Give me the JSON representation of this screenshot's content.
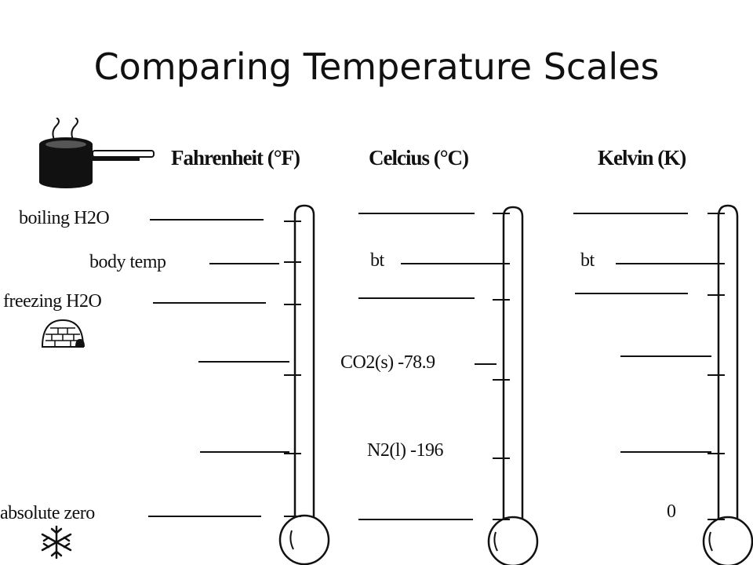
{
  "title": "Comparing Temperature Scales",
  "columns": {
    "fahrenheit": "Fahrenheit (°F)",
    "celcius": "Celcius (°C)",
    "kelvin": "Kelvin (K)"
  },
  "fahrenheit_labels": {
    "boiling": "boiling H2O",
    "body": "body temp",
    "freezing": "freezing H2O",
    "absolute_zero": "absolute zero"
  },
  "celcius_labels": {
    "body": "bt",
    "co2": "CO2(s) -78.9",
    "n2": "N2(l) -196"
  },
  "kelvin_labels": {
    "body": "bt",
    "absolute_zero": "0"
  },
  "icons": [
    "steaming-pot-icon",
    "igloo-icon",
    "snowflake-icon"
  ]
}
